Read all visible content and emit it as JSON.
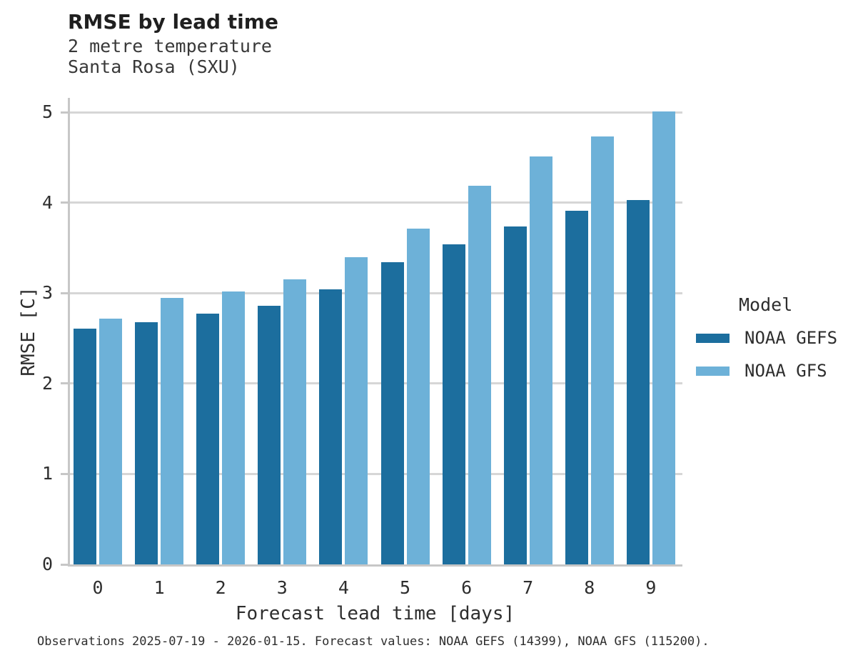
{
  "chart_data": {
    "type": "bar",
    "title": "RMSE by lead time",
    "subtitle_lines": [
      "2 metre temperature",
      "Santa Rosa (SXU)"
    ],
    "xlabel": "Forecast lead time [days]",
    "ylabel": "RMSE [C]",
    "categories": [
      "0",
      "1",
      "2",
      "3",
      "4",
      "5",
      "6",
      "7",
      "8",
      "9"
    ],
    "series": [
      {
        "name": "NOAA GEFS",
        "color": "#1c6e9e",
        "values": [
          2.61,
          2.68,
          2.77,
          2.86,
          3.04,
          3.34,
          3.54,
          3.74,
          3.91,
          4.03
        ]
      },
      {
        "name": "NOAA GFS",
        "color": "#6db1d8",
        "values": [
          2.72,
          2.95,
          3.02,
          3.15,
          3.4,
          3.71,
          4.19,
          4.51,
          4.73,
          5.01
        ]
      }
    ],
    "ylim": [
      0,
      5.16
    ],
    "yticks": [
      0,
      1,
      2,
      3,
      4,
      5
    ],
    "grid": true,
    "legend_title": "Model",
    "legend_position": "right",
    "caption": "Observations 2025-07-19 - 2026-01-15. Forecast values: NOAA GEFS (14399), NOAA GFS (115200)."
  },
  "colors": {
    "background": "#ffffff",
    "gridline": "#d6d6d6",
    "axis_spine": "#c7c7c7",
    "text": "#2e2e2e",
    "title_text": "#1f1f1f"
  }
}
